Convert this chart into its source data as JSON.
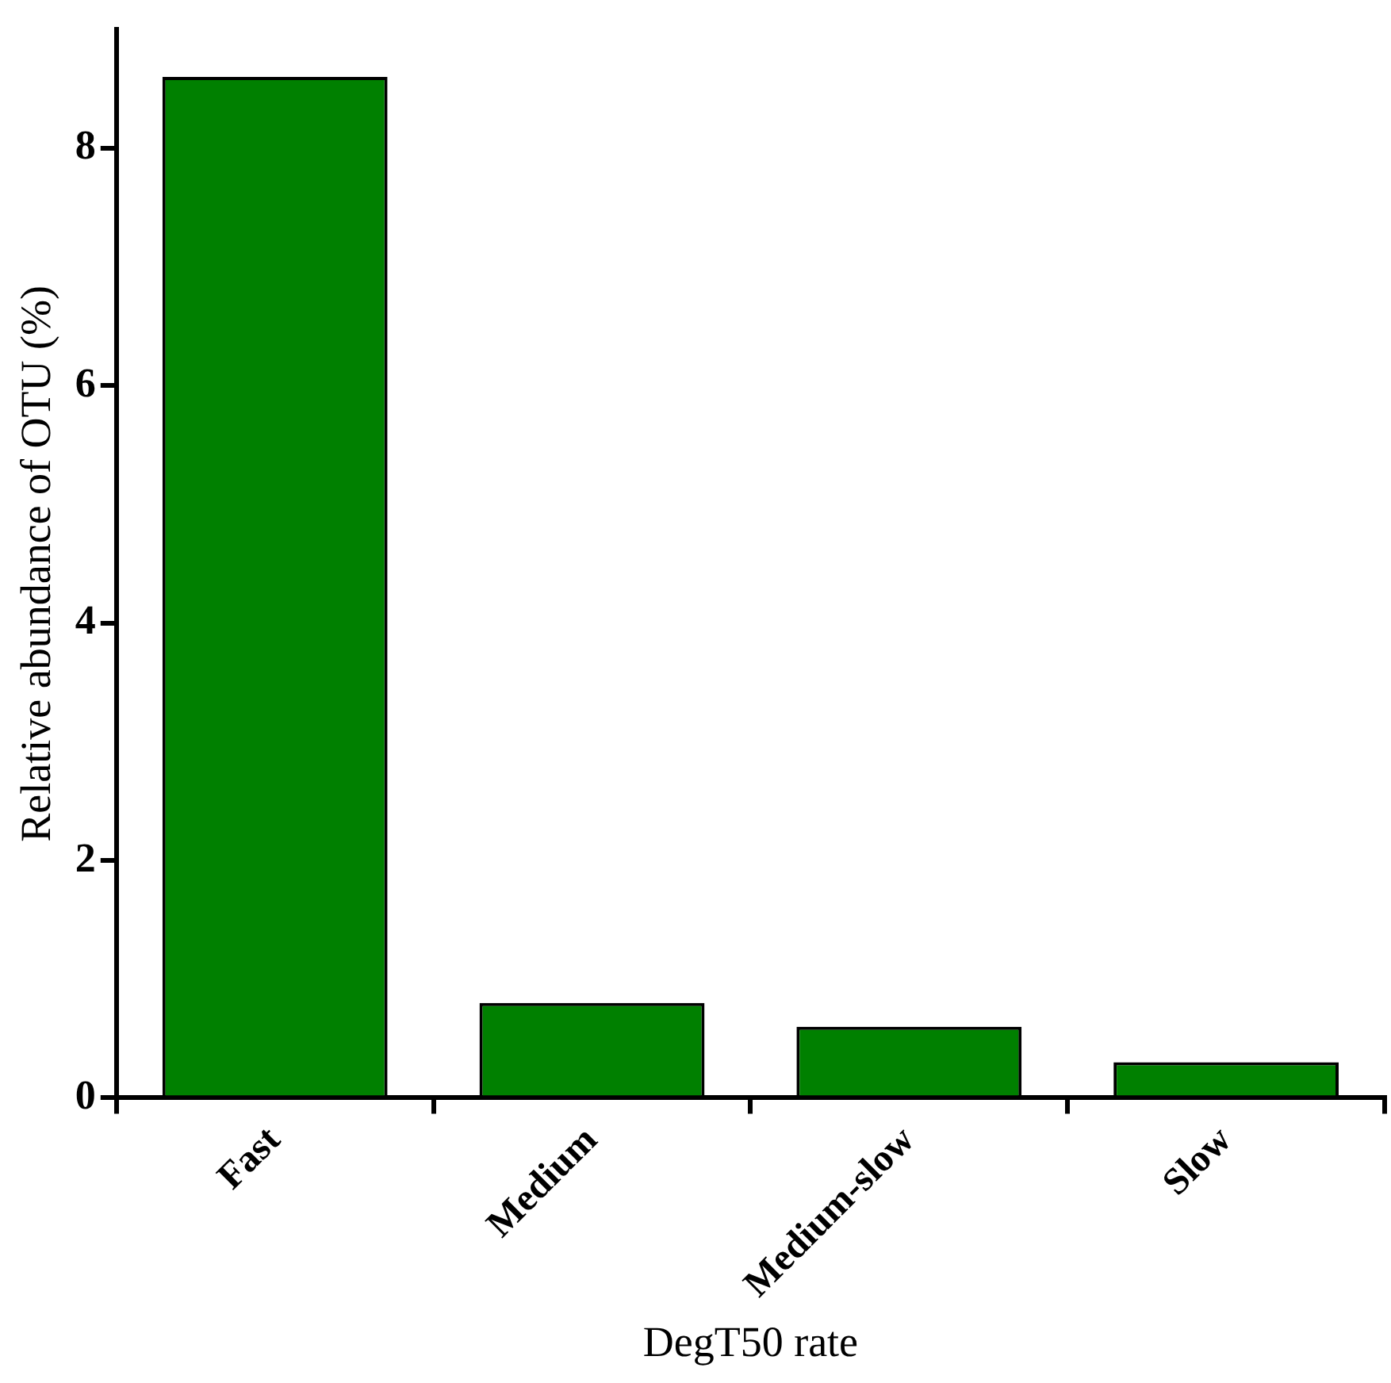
{
  "chart_data": {
    "type": "bar",
    "xlabel": "DegT50 rate",
    "ylabel": "Relative abundance of OTU (%)",
    "categories": [
      "Fast",
      "Medium",
      "Medium-slow",
      "Slow"
    ],
    "values": [
      8.6,
      0.8,
      0.6,
      0.3
    ],
    "color": "#008000",
    "ylim": [
      0,
      9
    ],
    "yticks": [
      0,
      2,
      4,
      6,
      8
    ],
    "grid": false,
    "legend": false
  }
}
